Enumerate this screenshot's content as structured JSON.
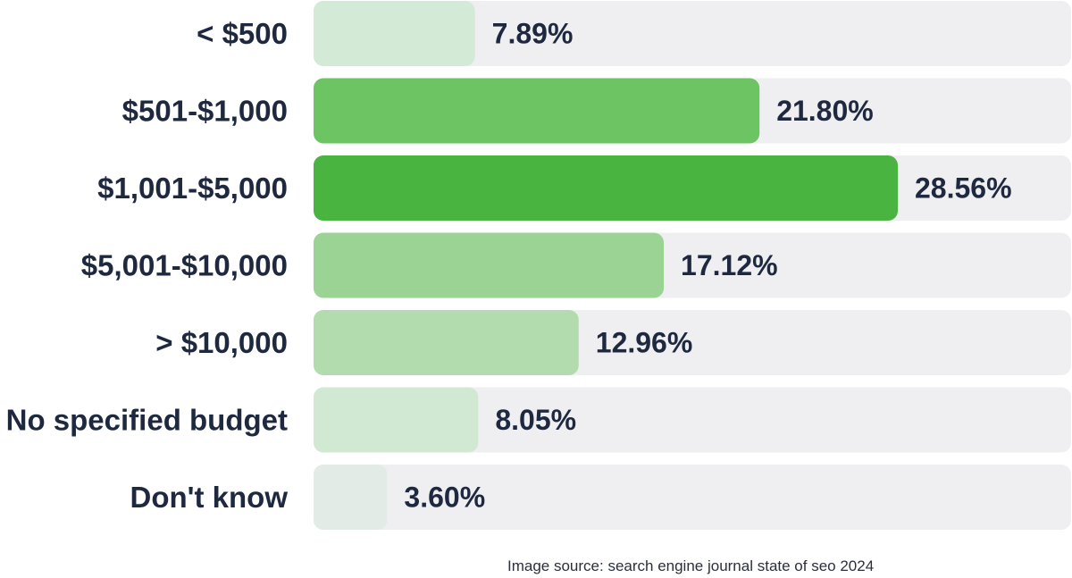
{
  "chart_data": {
    "type": "bar",
    "orientation": "horizontal",
    "categories": [
      "< $500",
      "$501-$1,000",
      "$1,001-$5,000",
      "$5,001-$10,000",
      "> $10,000",
      "No specified budget",
      "Don't know"
    ],
    "values": [
      7.89,
      21.8,
      28.56,
      17.12,
      12.96,
      8.05,
      3.6
    ],
    "value_labels": [
      "7.89%",
      "21.80%",
      "28.56%",
      "17.12%",
      "12.96%",
      "8.05%",
      "3.60%"
    ],
    "bar_colors": [
      "#d3ead6",
      "#6cc463",
      "#49b43f",
      "#9bd394",
      "#b2dcad",
      "#d1e9d3",
      "#e3ebe6"
    ],
    "track_color": "#efeff1",
    "label_color": "#1e2940",
    "title": "",
    "xlabel": "",
    "ylabel": "",
    "grid": false,
    "legend": false
  },
  "footer": {
    "source_text": "Image source: search engine journal state of seo 2024"
  }
}
